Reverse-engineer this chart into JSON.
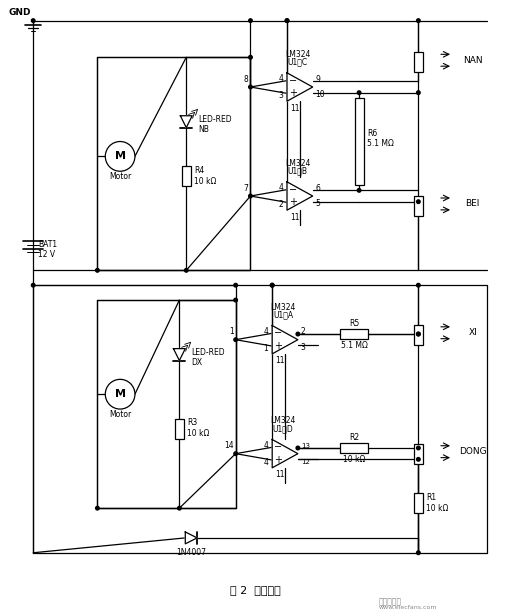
{
  "title": "图 2  控制电路",
  "background_color": "#ffffff",
  "line_color": "#000000",
  "fig_width": 5.11,
  "fig_height": 6.14,
  "dpi": 100,
  "watermark": "www.elecfans.com",
  "watermark_logo": "电子发烧友"
}
